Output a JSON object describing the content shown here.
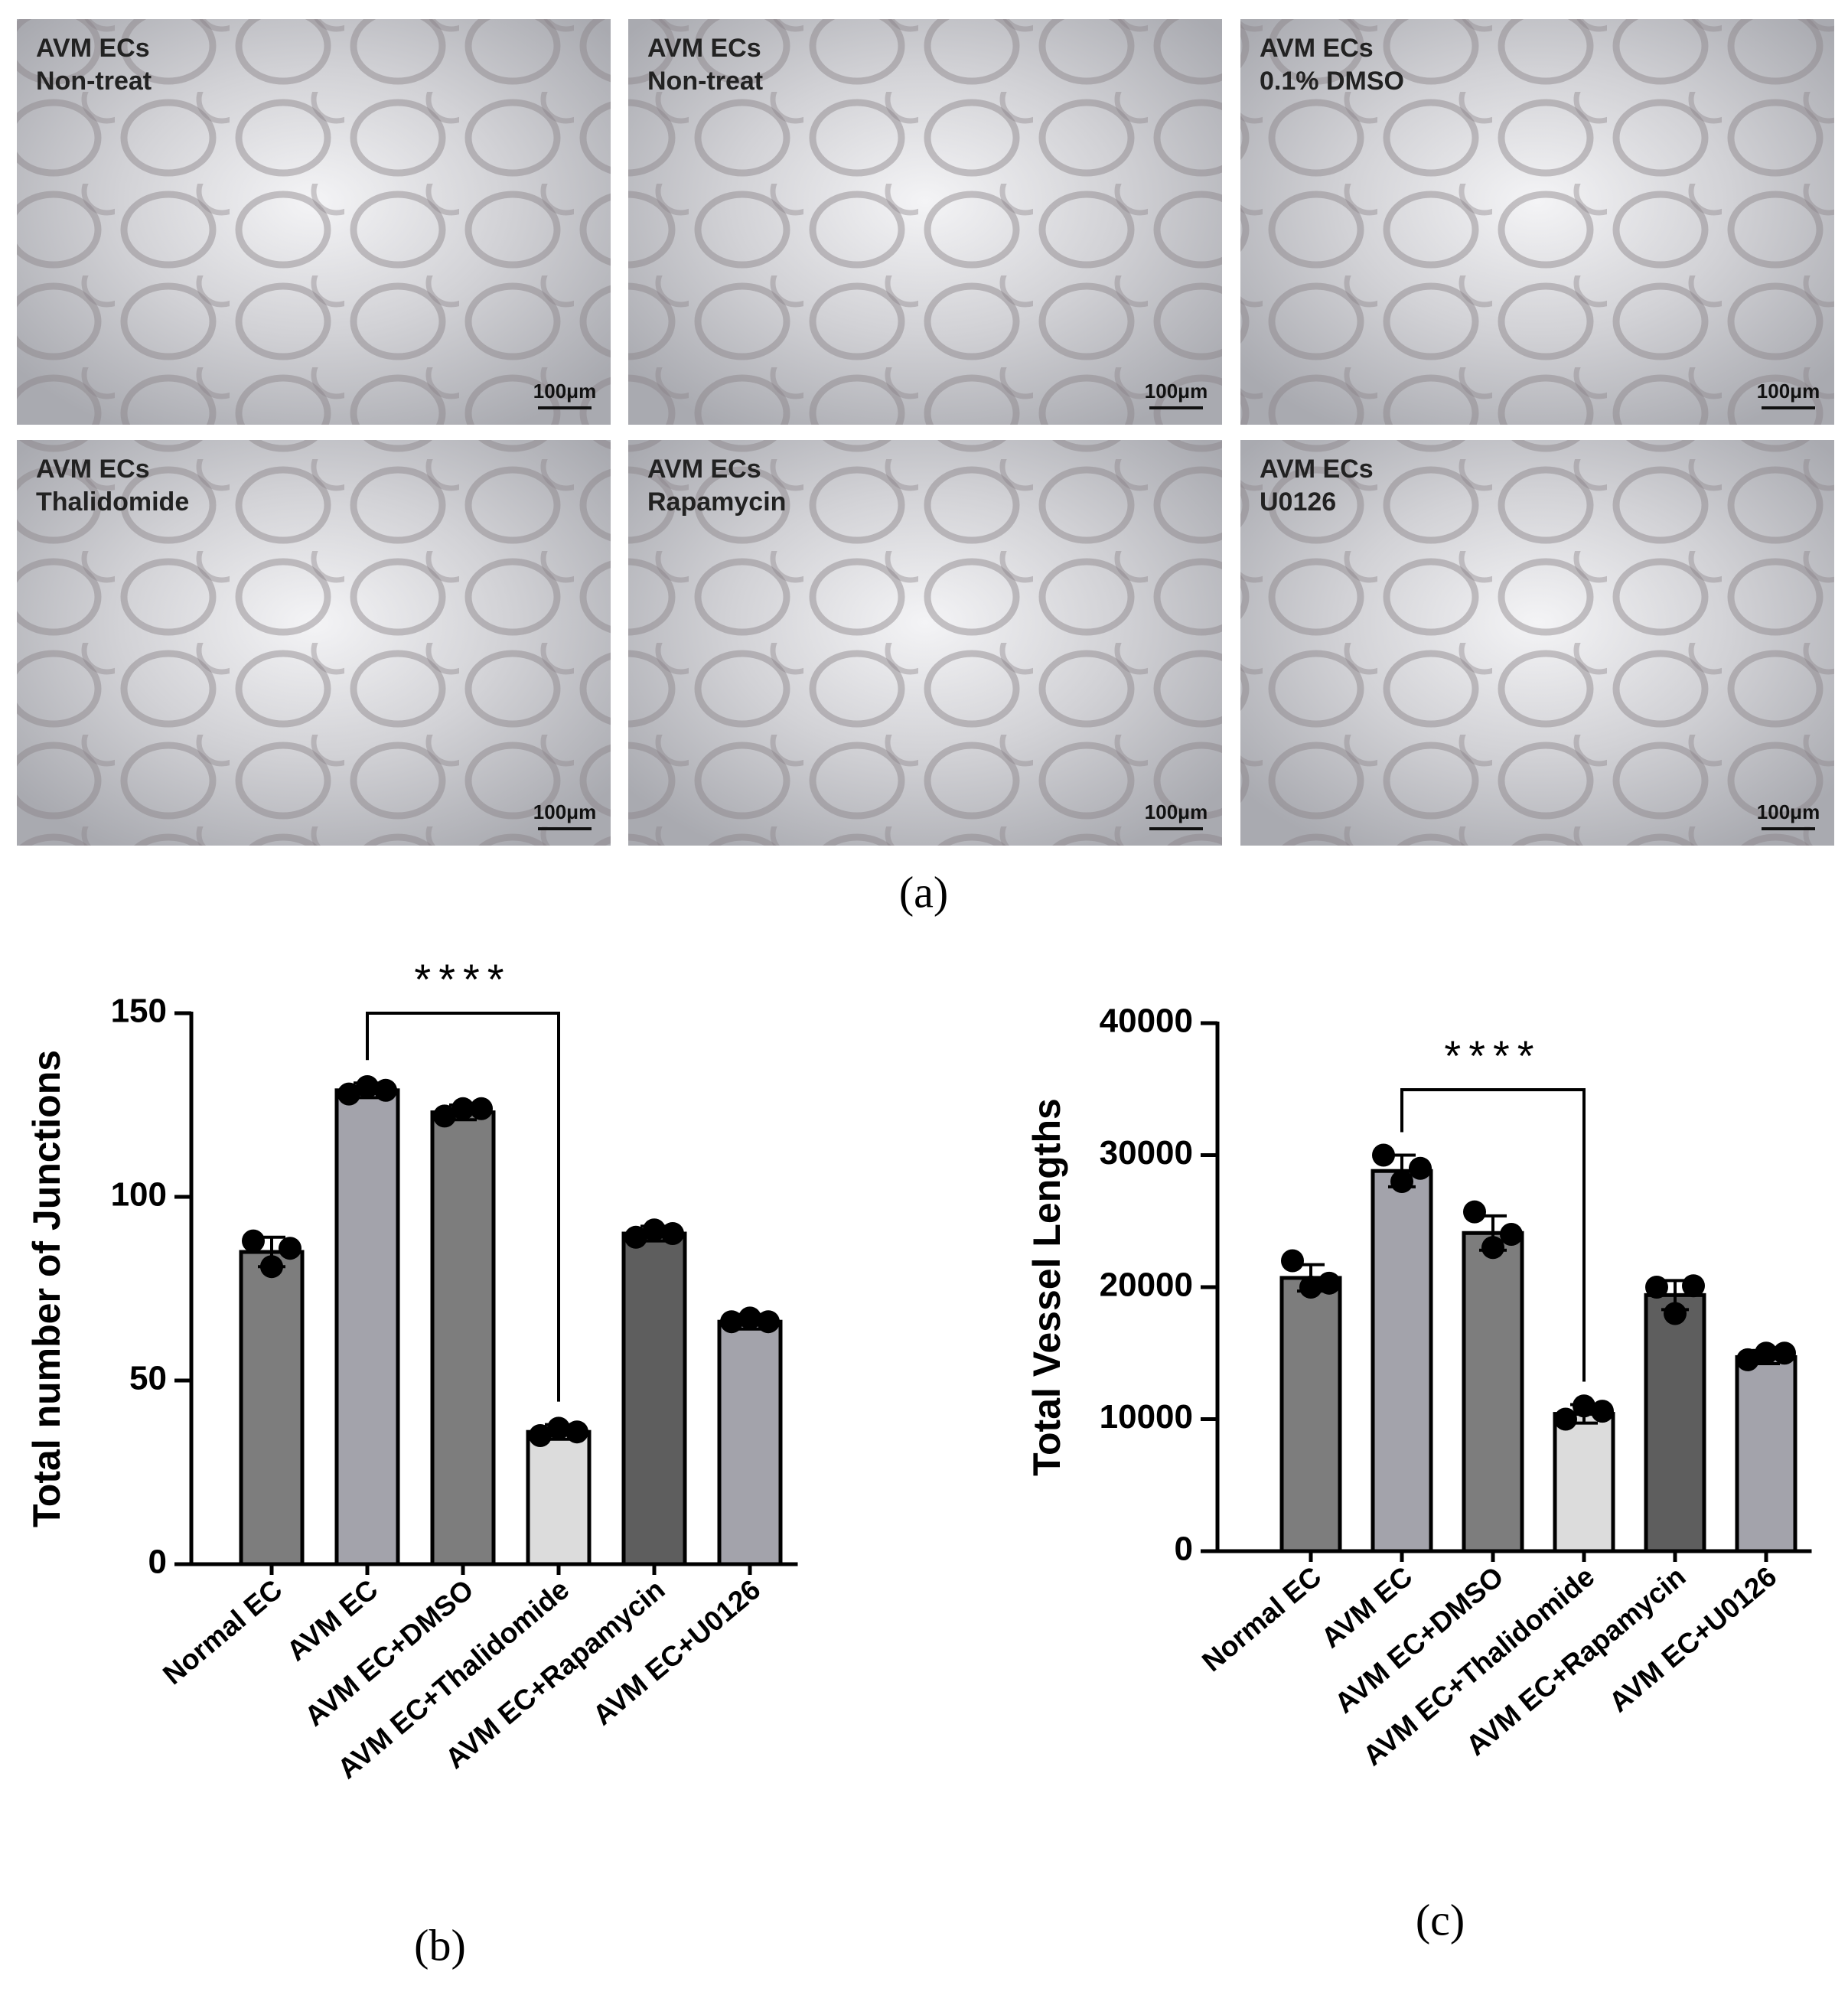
{
  "panels": [
    {
      "label": "AVM ECs",
      "sublabel": "Non-treat",
      "scale": "100μm"
    },
    {
      "label": "AVM ECs",
      "sublabel": "Non-treat",
      "scale": "100μm"
    },
    {
      "label": "AVM ECs",
      "sublabel": "0.1% DMSO",
      "scale": "100μm"
    },
    {
      "label": "AVM ECs",
      "sublabel": "Thalidomide",
      "scale": "100μm"
    },
    {
      "label": "AVM ECs",
      "sublabel": "Rapamycin",
      "scale": "100μm"
    },
    {
      "label": "AVM ECs",
      "sublabel": "U0126",
      "scale": "100μm"
    }
  ],
  "caption": "(a)",
  "chart_data": [
    {
      "type": "bar",
      "caption": "(b)",
      "ylabel": "Total number of Junctions",
      "categories": [
        "Normal EC",
        "AVM EC",
        "AVM EC+DMSO",
        "AVM EC+Thalidomide",
        "AVM EC+Rapamycin",
        "AVM EC+U0126"
      ],
      "values": [
        85,
        129,
        123,
        36,
        90,
        66
      ],
      "errors": [
        4,
        2,
        2,
        2,
        2,
        2
      ],
      "points": [
        [
          88,
          81,
          86
        ],
        [
          128,
          130,
          129
        ],
        [
          122,
          124,
          124
        ],
        [
          35,
          37,
          36
        ],
        [
          89,
          91,
          90
        ],
        [
          66,
          67,
          66
        ]
      ],
      "colors": [
        "#7d7d7d",
        "#a3a3ab",
        "#7d7d7d",
        "#dcdcdc",
        "#5e5e5e",
        "#a3a3ab"
      ],
      "annotation": "****",
      "ylim": [
        0,
        150
      ],
      "yticks": [
        0,
        50,
        100,
        150
      ]
    },
    {
      "type": "bar",
      "caption": "(c)",
      "ylabel": "Total  Vessel Lengths",
      "categories": [
        "Normal EC",
        "AVM EC",
        "AVM EC+DMSO",
        "AVM EC+Thalidomide",
        "AVM EC+Rapamycin",
        "AVM EC+U0126"
      ],
      "values": [
        20700,
        28800,
        24100,
        10400,
        19400,
        14700
      ],
      "errors": [
        1000,
        1200,
        1300,
        700,
        1100,
        500
      ],
      "points": [
        [
          22000,
          20000,
          20300
        ],
        [
          30000,
          28000,
          29000
        ],
        [
          25700,
          23000,
          24000
        ],
        [
          10000,
          11000,
          10600
        ],
        [
          20000,
          18000,
          20100
        ],
        [
          14500,
          15000,
          15000
        ]
      ],
      "colors": [
        "#7d7d7d",
        "#a3a3ab",
        "#7d7d7d",
        "#dcdcdc",
        "#5e5e5e",
        "#a3a3ab"
      ],
      "annotation": "****",
      "ylim": [
        0,
        40000
      ],
      "yticks": [
        0,
        10000,
        20000,
        30000,
        40000
      ]
    }
  ]
}
